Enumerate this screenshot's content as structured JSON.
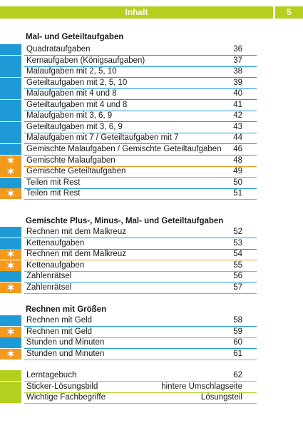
{
  "header": {
    "title": "Inhalt",
    "page_number": "5"
  },
  "colors": {
    "header": "#b5cf1f",
    "blue": "#1e9ad6",
    "orange": "#f39a1c",
    "green": "#b5cf1f"
  },
  "sections": [
    {
      "title": "Mal- und Geteiltaufgaben",
      "rows": [
        {
          "label": "Quadrataufgaben",
          "page": "36",
          "color": "blue",
          "star": false
        },
        {
          "label": "Kernaufgaben (Königsaufgaben)",
          "page": "37",
          "color": "blue",
          "star": false
        },
        {
          "label": "Malaufgaben mit 2, 5, 10",
          "page": "38",
          "color": "blue",
          "star": false
        },
        {
          "label": "Geteiltaufgaben mit 2, 5, 10",
          "page": "39",
          "color": "blue",
          "star": false
        },
        {
          "label": "Malaufgaben mit 4 und 8",
          "page": "40",
          "color": "blue",
          "star": false
        },
        {
          "label": "Geteiltaufgaben mit 4 und 8",
          "page": "41",
          "color": "blue",
          "star": false
        },
        {
          "label": "Malaufgaben mit 3, 6, 9",
          "page": "42",
          "color": "blue",
          "star": false
        },
        {
          "label": "Geteiltaufgaben mit 3, 6, 9",
          "page": "43",
          "color": "blue",
          "star": false
        },
        {
          "label": "Malaufgaben mit 7 / Geteiltaufgaben mit 7",
          "page": "44",
          "color": "blue",
          "star": false
        },
        {
          "label": "Gemischte Malaufgaben / Gemischte Geteiltaufgaben",
          "page": "46",
          "color": "blue",
          "star": false
        },
        {
          "label": "Gemischte Malaufgaben",
          "page": "48",
          "color": "orange",
          "star": true
        },
        {
          "label": "Gemischte Geteiltaufgaben",
          "page": "49",
          "color": "orange",
          "star": true
        },
        {
          "label": "Teilen mit Rest",
          "page": "50",
          "color": "blue",
          "star": false
        },
        {
          "label": "Teilen mit Rest",
          "page": "51",
          "color": "orange",
          "star": true
        }
      ]
    },
    {
      "title": "Gemischte Plus-, Minus-, Mal- und Geteiltaufgaben",
      "rows": [
        {
          "label": "Rechnen mit dem Malkreuz",
          "page": "52",
          "color": "blue",
          "star": false
        },
        {
          "label": "Kettenaufgaben",
          "page": "53",
          "color": "blue",
          "star": false
        },
        {
          "label": "Rechnen mit dem Malkreuz",
          "page": "54",
          "color": "orange",
          "star": true
        },
        {
          "label": "Kettenaufgaben",
          "page": "55",
          "color": "orange",
          "star": true
        },
        {
          "label": "Zahlenrätsel",
          "page": "56",
          "color": "blue",
          "star": false
        },
        {
          "label": "Zahlenrätsel",
          "page": "57",
          "color": "orange",
          "star": true
        }
      ]
    },
    {
      "title": "Rechnen mit Größen",
      "rows": [
        {
          "label": "Rechnen mit Geld",
          "page": "58",
          "color": "blue",
          "star": false
        },
        {
          "label": "Rechnen mit Geld",
          "page": "59",
          "color": "orange",
          "star": true
        },
        {
          "label": "Stunden und Minuten",
          "page": "60",
          "color": "blue",
          "star": false
        },
        {
          "label": "Stunden und Minuten",
          "page": "61",
          "color": "orange",
          "star": true
        }
      ]
    },
    {
      "title": "",
      "rows": [
        {
          "label": "Lerntagebuch",
          "page": "62",
          "color": "green",
          "star": false
        },
        {
          "label": "Sticker-Lösungsbild",
          "page": "hintere Umschlagseite",
          "color": "green",
          "star": false
        },
        {
          "label": "Wichtige Fachbegriffe",
          "page": "Lösungsteil",
          "color": "green",
          "star": false
        }
      ]
    }
  ]
}
